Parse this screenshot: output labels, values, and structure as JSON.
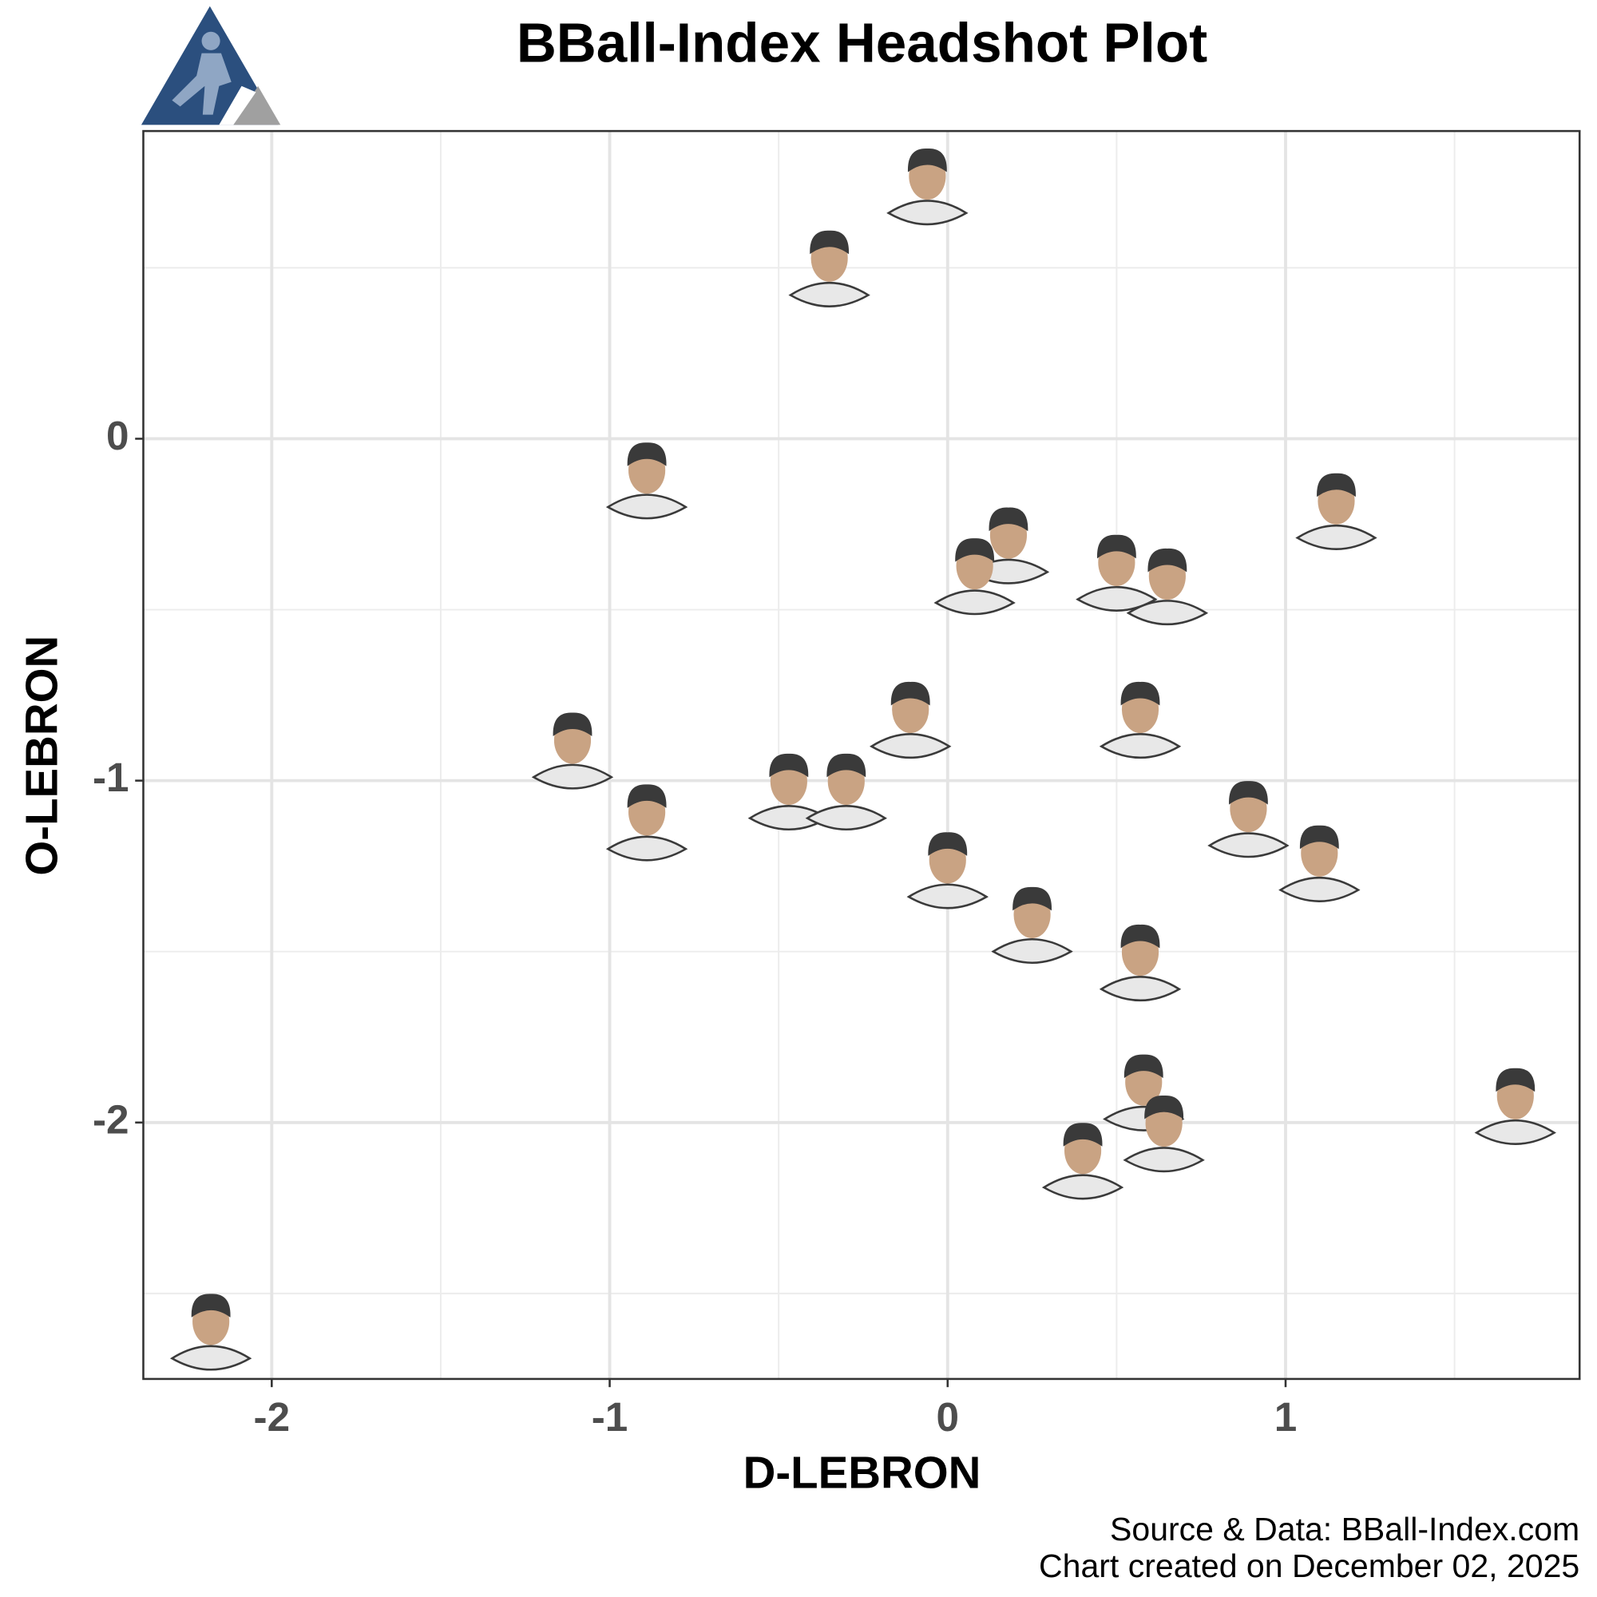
{
  "chart_data": {
    "type": "scatter",
    "title": "BBall-Index Headshot Plot",
    "x_label": "D-LEBRON",
    "y_label": "O-LEBRON",
    "source": "Source & Data: BBall-Index.com",
    "created": "Chart created on December 02, 2025",
    "x": [
      -0.06,
      -0.35,
      -0.89,
      1.15,
      0.18,
      0.08,
      0.5,
      0.65,
      -0.11,
      0.57,
      -1.11,
      -0.89,
      -0.47,
      -0.3,
      0.0,
      0.89,
      1.1,
      0.25,
      0.57,
      0.58,
      0.64,
      0.4,
      1.68,
      -2.18
    ],
    "values": [
      0.75,
      0.51,
      -0.11,
      -0.2,
      -0.3,
      -0.39,
      -0.38,
      -0.42,
      -0.81,
      -0.81,
      -0.9,
      -1.11,
      -1.02,
      -1.02,
      -1.25,
      -1.1,
      -1.23,
      -1.41,
      -1.52,
      -1.9,
      -2.02,
      -2.1,
      -1.94,
      -2.6
    ],
    "color": "#3a3a3a",
    "xlim": [
      -2.38,
      1.87
    ],
    "ylim": [
      -2.75,
      0.9
    ],
    "xticks": [
      -2,
      -1,
      0,
      1
    ],
    "yticks": [
      0,
      -1,
      -2
    ],
    "minor_xticks": [
      -1.5,
      -0.5,
      0.5,
      1.5
    ],
    "minor_yticks": [
      0.5,
      -0.5,
      -1.5,
      -2.5
    ],
    "grid": true
  }
}
